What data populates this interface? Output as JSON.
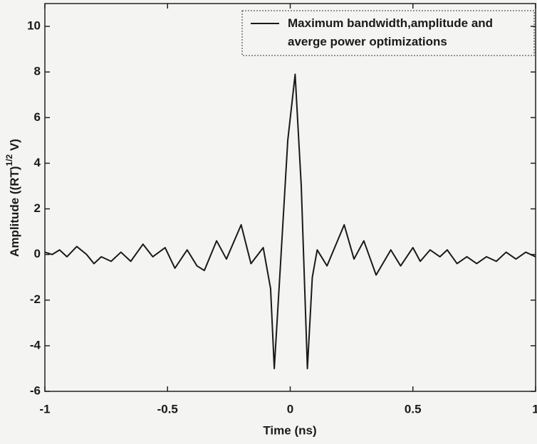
{
  "chart_data": {
    "type": "line",
    "x_label": "Time (ns)",
    "y_label": [
      "Amplitude ((RT)",
      "1/2",
      " V)"
    ],
    "xlim": [
      -1,
      1
    ],
    "ylim": [
      -6,
      11
    ],
    "xticks": [
      -1,
      -0.5,
      0,
      0.5,
      1
    ],
    "yticks": [
      -6,
      -4,
      -2,
      0,
      2,
      4,
      6,
      8,
      10
    ],
    "grid": false,
    "legend": "upper right",
    "x": [
      -1,
      -0.97,
      -0.94,
      -0.91,
      -0.87,
      -0.83,
      -0.8,
      -0.77,
      -0.73,
      -0.69,
      -0.65,
      -0.6,
      -0.56,
      -0.51,
      -0.47,
      -0.42,
      -0.38,
      -0.35,
      -0.3,
      -0.26,
      -0.2,
      -0.16,
      -0.11,
      -0.08,
      -0.065,
      -0.04,
      -0.01,
      0.02,
      0.045,
      0.07,
      0.09,
      0.11,
      0.15,
      0.22,
      0.26,
      0.3,
      0.35,
      0.41,
      0.45,
      0.5,
      0.53,
      0.57,
      0.61,
      0.64,
      0.68,
      0.72,
      0.76,
      0.8,
      0.84,
      0.88,
      0.92,
      0.96,
      1.0
    ],
    "series": [
      {
        "name": "Maximum bandwidth,amplitude and averge power optimizations",
        "color": "#1a1a1a",
        "values": [
          0.1,
          0.0,
          0.2,
          -0.1,
          0.35,
          0.0,
          -0.4,
          -0.1,
          -0.3,
          0.1,
          -0.3,
          0.45,
          -0.1,
          0.3,
          -0.6,
          0.2,
          -0.5,
          -0.7,
          0.6,
          -0.2,
          1.3,
          -0.4,
          0.3,
          -1.5,
          -5,
          -0.5,
          5,
          7.9,
          3,
          -5,
          -1,
          0.2,
          -0.5,
          1.3,
          -0.2,
          0.6,
          -0.9,
          0.2,
          -0.5,
          0.3,
          -0.3,
          0.2,
          -0.1,
          0.2,
          -0.4,
          -0.1,
          -0.4,
          -0.1,
          -0.3,
          0.1,
          -0.2,
          0.1,
          -0.1
        ]
      }
    ]
  }
}
